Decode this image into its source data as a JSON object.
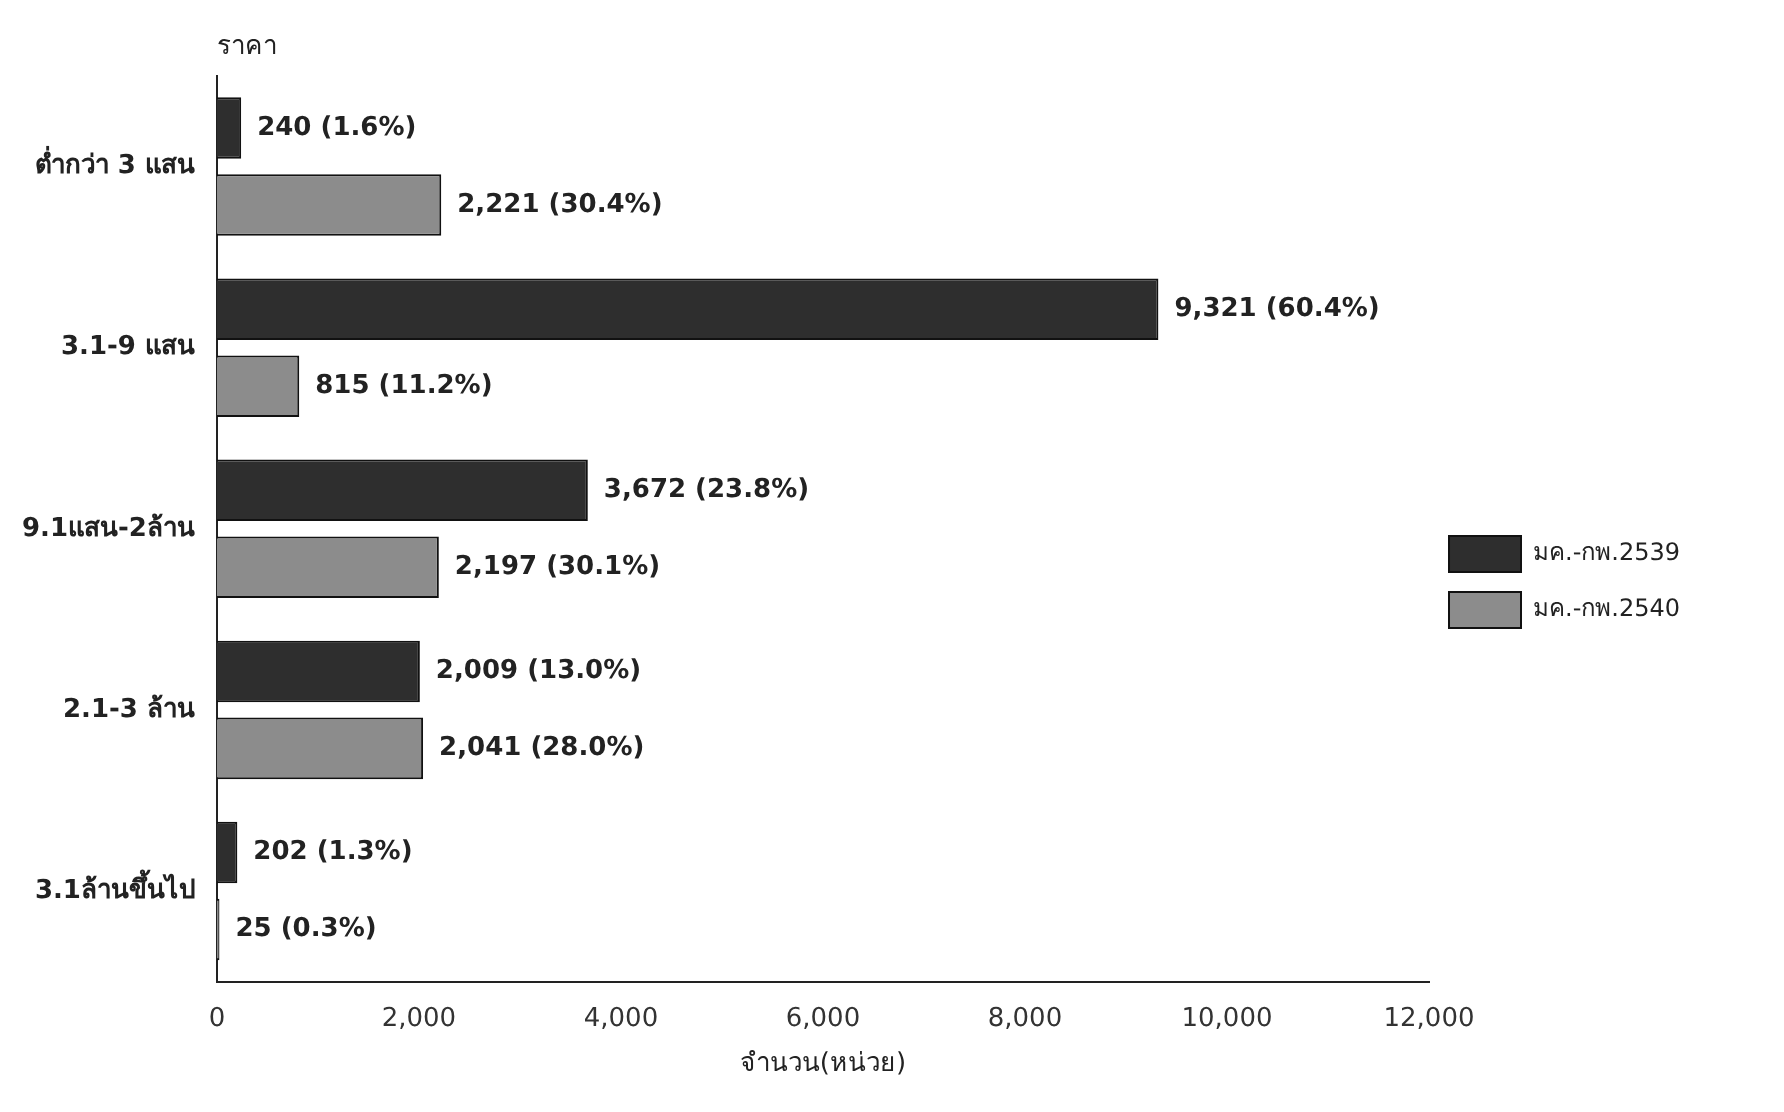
{
  "chart_data": {
    "type": "bar",
    "orientation": "horizontal",
    "ylabel": "ราคา",
    "xlabel": "จำนวน(หน่วย)",
    "categories": [
      "ต่ำกว่า 3 แสน",
      "3.1-9 แสน",
      "9.1แสน-2ล้าน",
      "2.1-3 ล้าน",
      "3.1ล้านขึ้นไป"
    ],
    "series": [
      {
        "name": "มค.-กพ.2539",
        "color": "#2e2e2e",
        "values": [
          240,
          9321,
          3672,
          2009,
          202
        ],
        "value_labels": [
          "240 (1.6%)",
          "9,321 (60.4%)",
          "3,672 (23.8%)",
          "2,009 (13.0%)",
          "202 (1.3%)"
        ]
      },
      {
        "name": "มค.-กพ.2540",
        "color": "#8c8c8c",
        "values": [
          2221,
          815,
          2197,
          2041,
          25
        ],
        "value_labels": [
          "2,221 (30.4%)",
          "815 (11.2%)",
          "2,197 (30.1%)",
          "2,041 (28.0%)",
          "25 (0.3%)"
        ]
      }
    ],
    "xlim": [
      0,
      12000
    ],
    "xticks": [
      {
        "value": 0,
        "label": "0"
      },
      {
        "value": 2000,
        "label": "2,000"
      },
      {
        "value": 4000,
        "label": "4,000"
      },
      {
        "value": 6000,
        "label": "6,000"
      },
      {
        "value": 8000,
        "label": "8,000"
      },
      {
        "value": 10000,
        "label": "10,000"
      },
      {
        "value": 12000,
        "label": "12,000"
      }
    ],
    "grid": false,
    "legend": "right"
  }
}
